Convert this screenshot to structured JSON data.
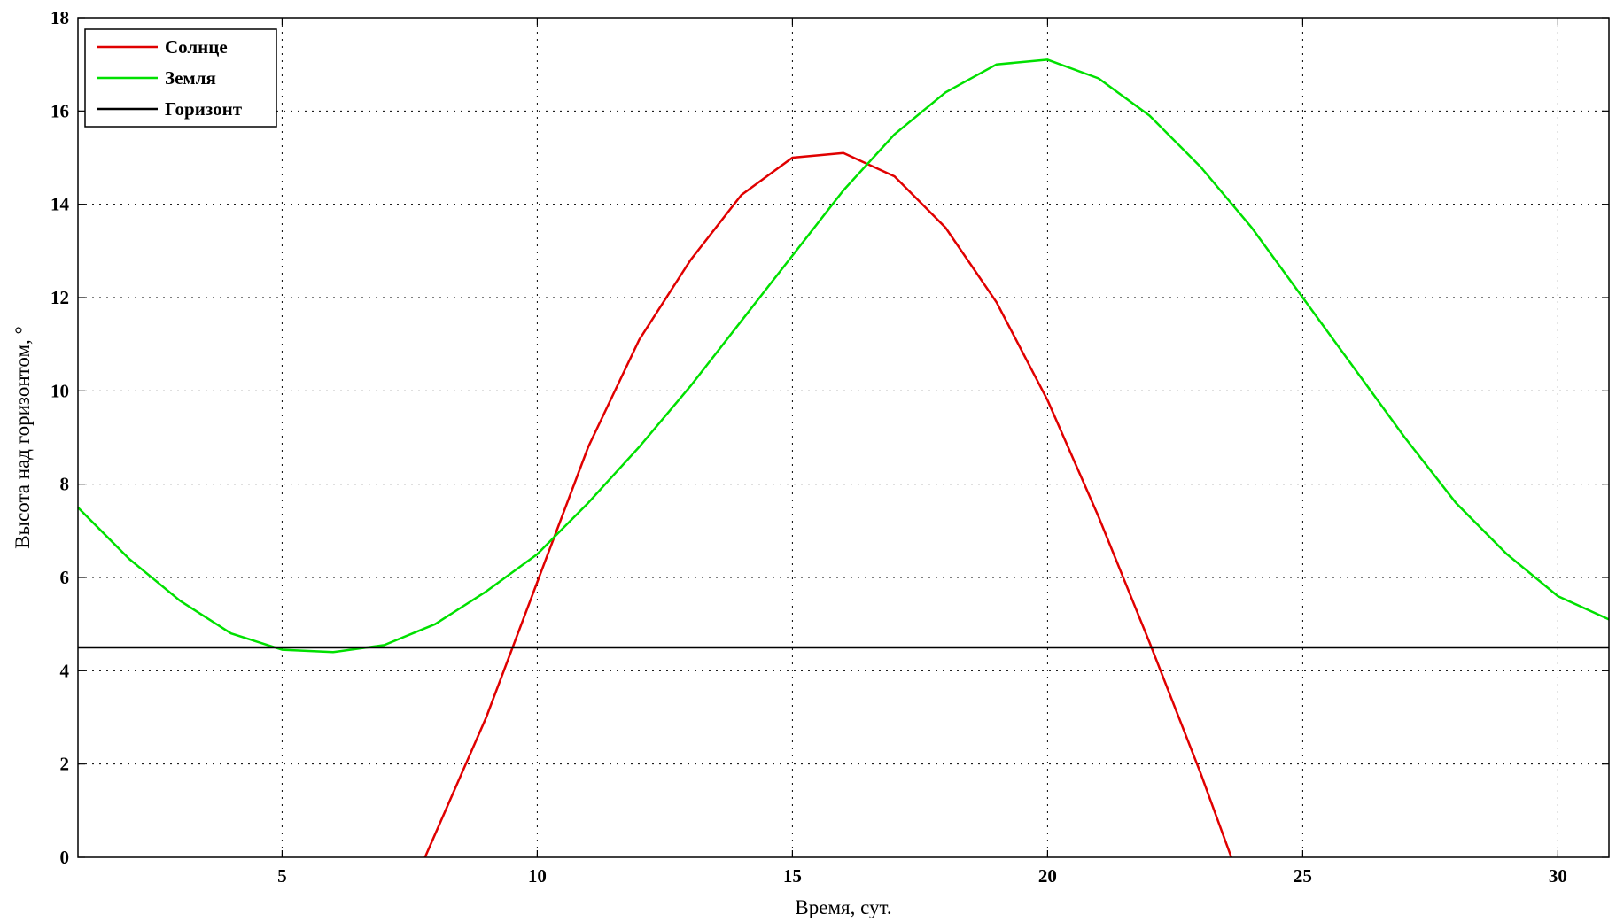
{
  "chart_data": {
    "type": "line",
    "title": "",
    "xlabel": "Время, сут.",
    "ylabel": "Высота над горизонтом, °",
    "xlim": [
      1,
      31
    ],
    "ylim": [
      0,
      18
    ],
    "xticks": [
      5,
      10,
      15,
      20,
      25,
      30
    ],
    "yticks": [
      0,
      2,
      4,
      6,
      8,
      10,
      12,
      14,
      16,
      18
    ],
    "grid": true,
    "legend": "top-left",
    "series": [
      {
        "name": "Солнце",
        "color": "#e00000",
        "x": [
          7.8,
          9,
          10,
          11,
          12,
          13,
          14,
          15,
          16,
          17,
          18,
          19,
          20,
          21,
          22,
          23,
          23.6
        ],
        "y": [
          0,
          3.0,
          5.9,
          8.8,
          11.1,
          12.8,
          14.2,
          15.0,
          15.1,
          14.6,
          13.5,
          11.9,
          9.8,
          7.3,
          4.6,
          1.8,
          0
        ]
      },
      {
        "name": "Земля",
        "color": "#00e000",
        "x": [
          1,
          2,
          3,
          4,
          5,
          6,
          7,
          8,
          9,
          10,
          11,
          12,
          13,
          14,
          15,
          16,
          17,
          18,
          19,
          20,
          21,
          22,
          23,
          24,
          25,
          26,
          27,
          28,
          29,
          30,
          31
        ],
        "y": [
          7.5,
          6.4,
          5.5,
          4.8,
          4.45,
          4.4,
          4.55,
          5.0,
          5.7,
          6.5,
          7.6,
          8.8,
          10.1,
          11.5,
          12.9,
          14.3,
          15.5,
          16.4,
          17.0,
          17.1,
          16.7,
          15.9,
          14.8,
          13.5,
          12.0,
          10.5,
          9.0,
          7.6,
          6.5,
          5.6,
          5.1
        ]
      },
      {
        "name": "Горизонт",
        "color": "#000000",
        "x": [
          1,
          31
        ],
        "y": [
          4.5,
          4.5
        ]
      }
    ]
  }
}
